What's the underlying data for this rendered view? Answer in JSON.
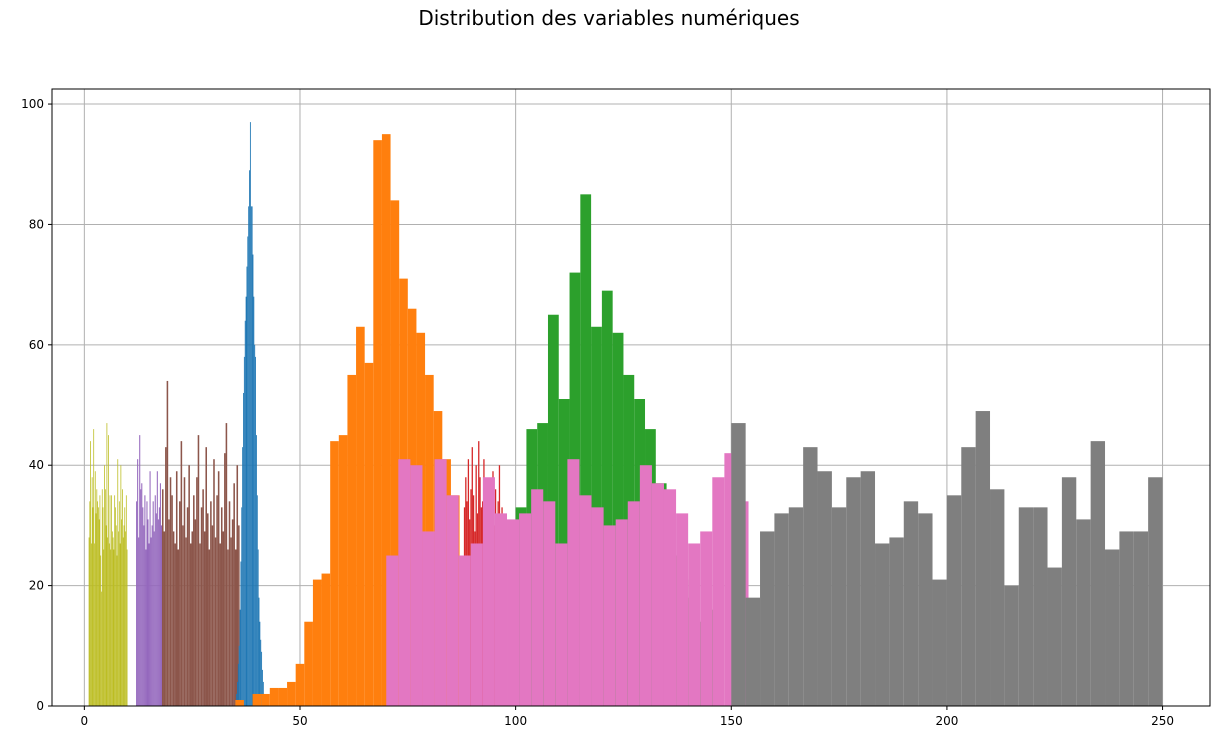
{
  "chart_data": {
    "type": "bar",
    "title": "Distribution des variables numériques",
    "xlabel": "",
    "ylabel": "",
    "xlim": [
      -7.5,
      261
    ],
    "ylim": [
      0,
      102.5
    ],
    "x_ticks": [
      0,
      50,
      100,
      150,
      200,
      250
    ],
    "y_ticks": [
      0,
      20,
      40,
      60,
      80,
      100
    ],
    "grid": true,
    "series": [
      {
        "color": "#bcbd22",
        "bin_start": 1.0,
        "bin_width": 0.18,
        "values": [
          28,
          34,
          44,
          27,
          38,
          33,
          46,
          27,
          39,
          32,
          36,
          34,
          33,
          31,
          35,
          25,
          19,
          36,
          33,
          26,
          40,
          36,
          30,
          47,
          28,
          45,
          27,
          35,
          26,
          35,
          29,
          28,
          26,
          35,
          33,
          30,
          25,
          41,
          29,
          34,
          27,
          40,
          31,
          36,
          28,
          30,
          33,
          29,
          35,
          26
        ]
      },
      {
        "color": "#9467bd",
        "bin_start": 12.0,
        "bin_width": 0.24,
        "values": [
          34,
          41,
          28,
          45,
          36,
          37,
          33,
          30,
          35,
          26,
          34,
          31,
          27,
          39,
          28,
          30,
          34,
          29,
          35,
          32,
          39,
          31,
          33,
          37,
          30
        ]
      },
      {
        "color": "#8c564b",
        "bin_start": 18.0,
        "bin_width": 0.36,
        "values": [
          36,
          29,
          43,
          54,
          31,
          38,
          35,
          29,
          27,
          39,
          26,
          34,
          44,
          30,
          38,
          28,
          33,
          40,
          27,
          29,
          35,
          31,
          38,
          45,
          27,
          33,
          36,
          29,
          43,
          32,
          26,
          34,
          30,
          41,
          28,
          35,
          39,
          27,
          33,
          29,
          42,
          47,
          26,
          34,
          28,
          31,
          37,
          26,
          40,
          30
        ]
      },
      {
        "color": "#1f77b4",
        "bin_start": 35.0,
        "bin_width": 0.2,
        "values": [
          1,
          2,
          4,
          7,
          10,
          16,
          24,
          33,
          43,
          52,
          58,
          64,
          68,
          73,
          78,
          83,
          89,
          97,
          83,
          83,
          75,
          68,
          60,
          58,
          45,
          35,
          26,
          18,
          14,
          11,
          9,
          6,
          4,
          2,
          1
        ]
      },
      {
        "color": "#ff7f0e",
        "bin_start": 35.0,
        "bin_width": 2.0,
        "values": [
          1,
          0,
          2,
          2,
          3,
          3,
          4,
          7,
          14,
          21,
          22,
          44,
          45,
          55,
          63,
          57,
          94,
          95,
          84,
          71,
          66,
          62,
          55,
          49,
          41,
          35
        ]
      },
      {
        "color": "#2ca02c",
        "bin_start": 100.0,
        "bin_width": 2.5,
        "values": [
          33,
          46,
          47,
          65,
          51,
          72,
          85,
          63,
          69,
          62,
          55,
          51,
          46,
          37,
          25,
          21,
          18,
          14,
          16
        ]
      },
      {
        "color": "#d62728",
        "bin_start": 88.0,
        "bin_width": 0.3,
        "values": [
          33,
          38,
          34,
          41,
          31,
          36,
          43,
          35,
          29,
          40,
          32,
          44,
          38,
          33,
          34,
          41,
          31,
          37,
          32,
          35,
          37,
          33,
          39,
          30,
          36,
          28,
          34,
          40,
          31,
          33
        ]
      },
      {
        "color": "#e377c2",
        "bin_start": 70.0,
        "bin_width": 2.8,
        "values": [
          25,
          41,
          40,
          29,
          41,
          35,
          25,
          27,
          38,
          32,
          31,
          32,
          36,
          34,
          27,
          41,
          35,
          33,
          30,
          31,
          34,
          40,
          37,
          36,
          32,
          27,
          29,
          38,
          42,
          34
        ]
      },
      {
        "color": "#7f7f7f",
        "bin_start": 150.0,
        "bin_width": 3.333,
        "values": [
          47,
          18,
          29,
          32,
          33,
          43,
          39,
          33,
          38,
          39,
          27,
          28,
          34,
          32,
          21,
          35,
          43,
          49,
          36,
          20,
          33,
          33,
          23,
          38,
          31,
          44,
          26,
          29,
          29,
          38
        ]
      }
    ]
  }
}
